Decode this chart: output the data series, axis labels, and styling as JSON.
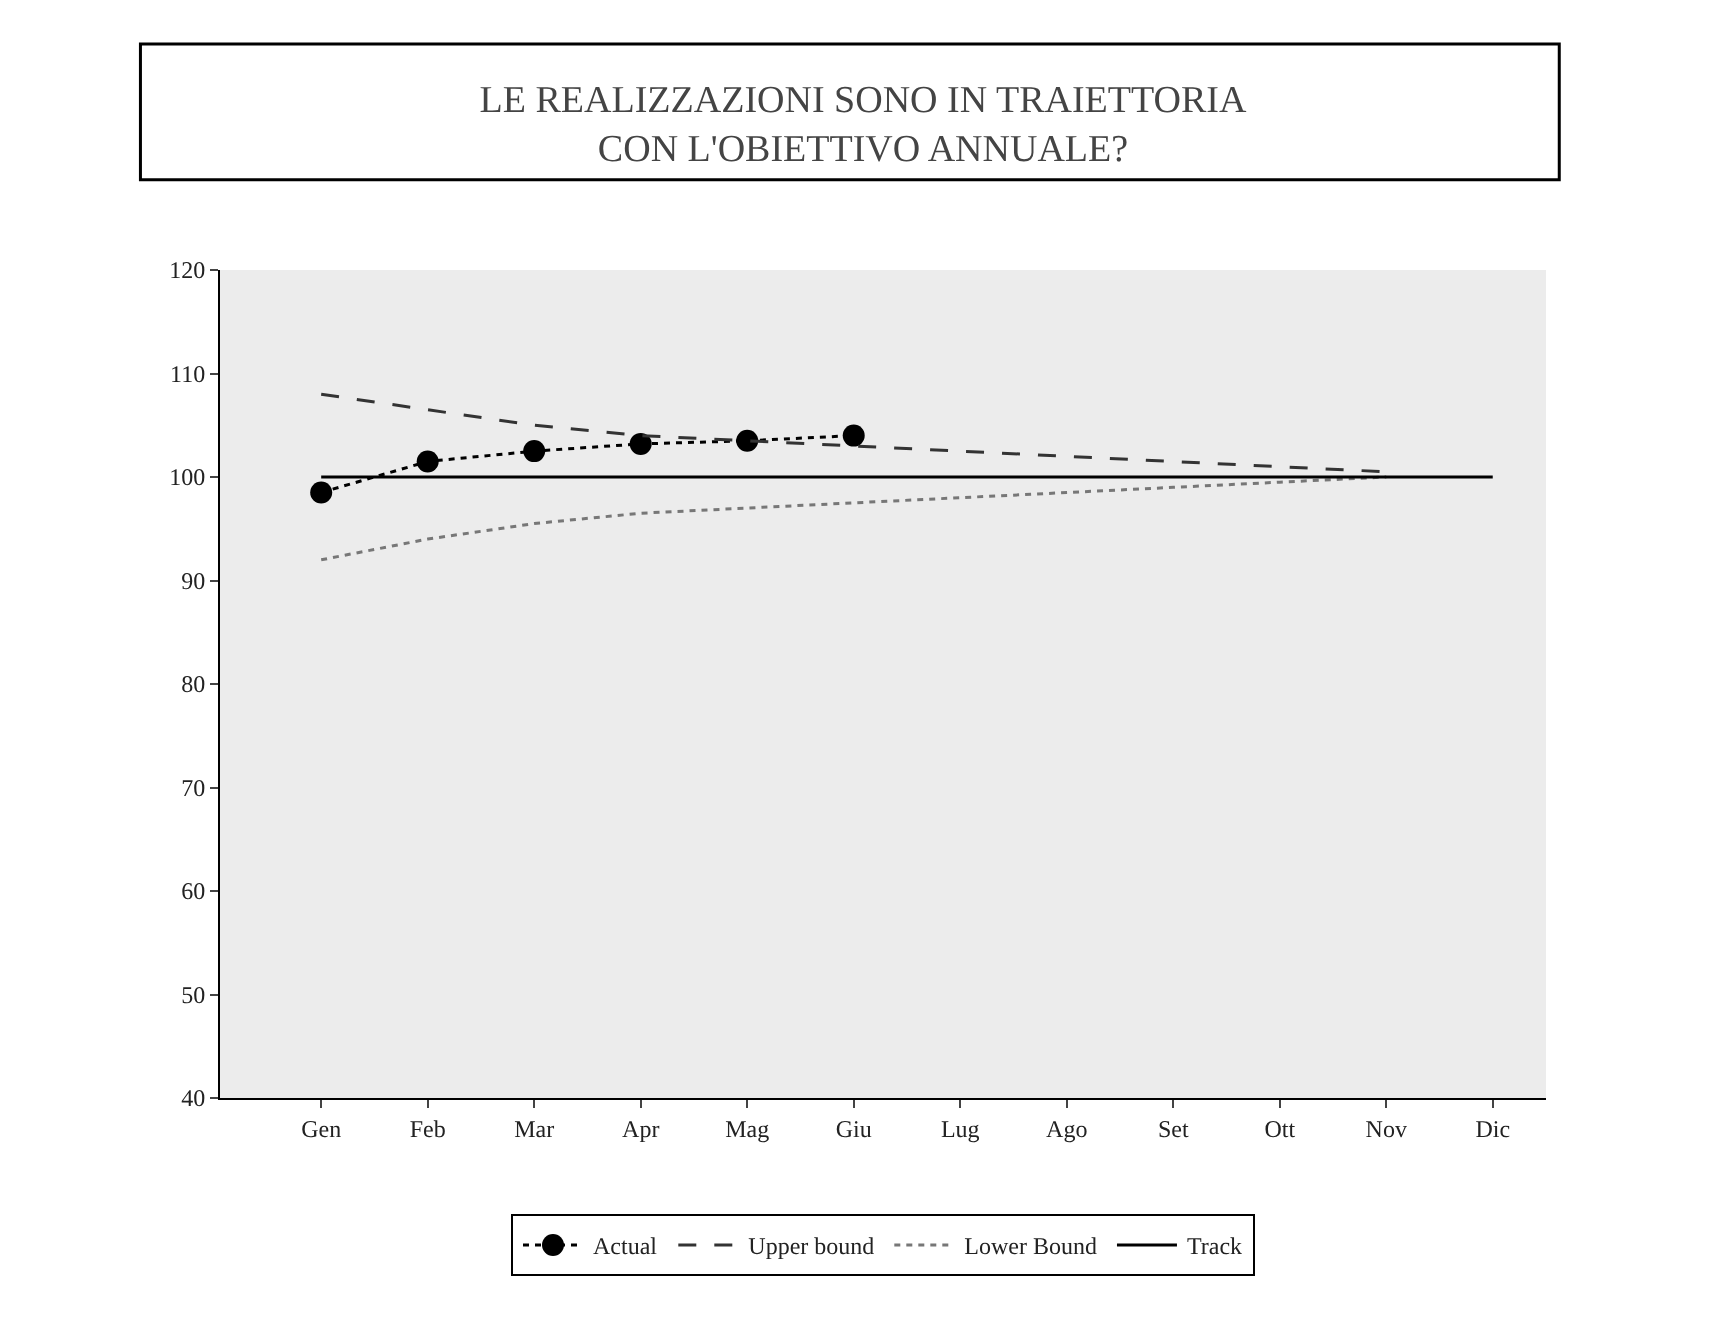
{
  "chart_data": {
    "type": "line",
    "title": "LE REALIZZAZIONI SONO IN TRAIETTORIA\nCON L'OBIETTIVO ANNUALE?",
    "categories": [
      "Gen",
      "Feb",
      "Mar",
      "Apr",
      "Mag",
      "Giu",
      "Lug",
      "Ago",
      "Set",
      "Ott",
      "Nov",
      "Dic"
    ],
    "series": [
      {
        "name": "Actual",
        "color": "#000000",
        "marker": "circle",
        "line_style": "dotted",
        "values": [
          98.5,
          101.5,
          102.5,
          103.2,
          103.5,
          104,
          null,
          null,
          null,
          null,
          null,
          null
        ]
      },
      {
        "name": "Upper bound",
        "color": "#333333",
        "marker": "none",
        "line_style": "dashed",
        "values": [
          108,
          106.5,
          105,
          104,
          103.5,
          103,
          102.5,
          102,
          101.5,
          101,
          100.5,
          null
        ]
      },
      {
        "name": "Lower Bound",
        "color": "#777777",
        "marker": "none",
        "line_style": "dotted",
        "values": [
          92,
          94,
          95.5,
          96.5,
          97,
          97.5,
          98,
          98.5,
          99,
          99.5,
          100,
          null
        ]
      },
      {
        "name": "Track",
        "color": "#000000",
        "marker": "none",
        "line_style": "solid",
        "values": [
          100,
          100,
          100,
          100,
          100,
          100,
          100,
          100,
          100,
          100,
          100,
          100
        ]
      }
    ],
    "ylim": [
      40,
      120
    ],
    "yticks": [
      40,
      50,
      60,
      70,
      80,
      90,
      100,
      110,
      120
    ],
    "grid": false,
    "legend": "bottom"
  }
}
